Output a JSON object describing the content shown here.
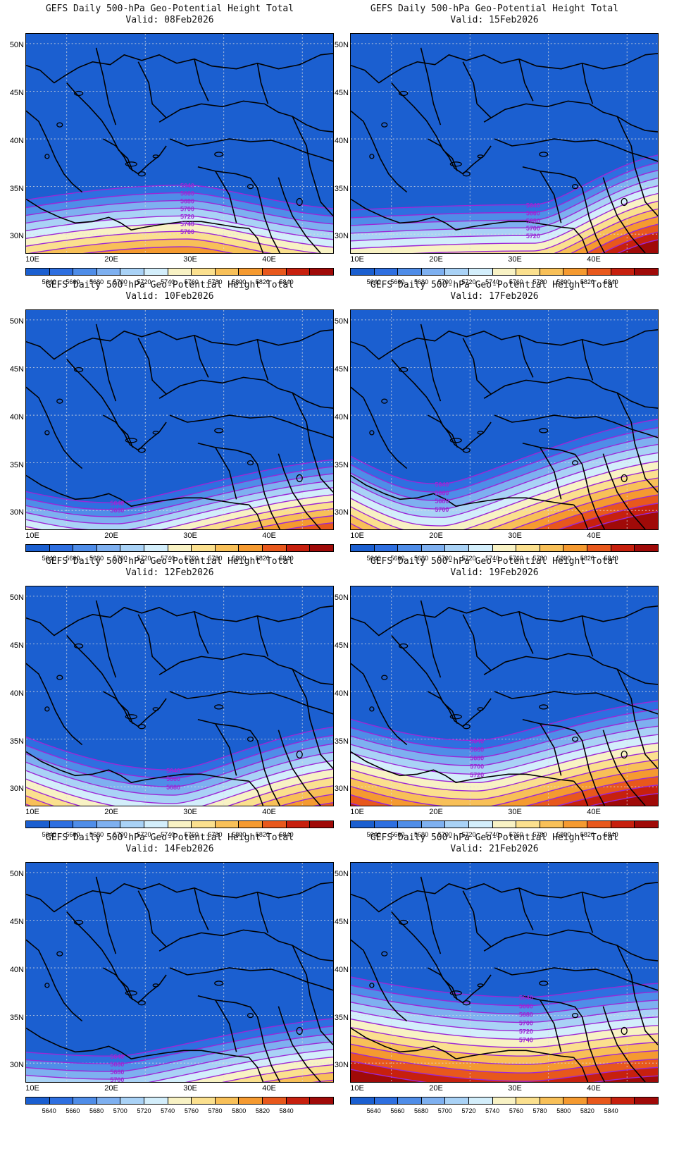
{
  "panel_title": "GEFS Daily 500-hPa Geo-Potential Height Total",
  "valid_prefix": "Valid:",
  "lat_labels": [
    "50N",
    "45N",
    "40N",
    "35N",
    "30N"
  ],
  "lon_labels": [
    "10E",
    "20E",
    "30E",
    "40E"
  ],
  "colorbar": {
    "levels": [
      "5640",
      "5660",
      "5680",
      "5700",
      "5720",
      "5740",
      "5760",
      "5780",
      "5800",
      "5820",
      "5840"
    ],
    "colors": [
      "#1b5fd0",
      "#2e6fe0",
      "#4f8de8",
      "#7eb0f0",
      "#a9d2f6",
      "#d3eefb",
      "#f8f2c4",
      "#fbe08e",
      "#f8c058",
      "#f59a30",
      "#e8581c",
      "#c7200e",
      "#a00a08"
    ]
  },
  "contour_color": "#9c27d6",
  "panels": [
    {
      "valid": "08Feb2026",
      "labels": [
        "5640",
        "5660",
        "5680",
        "5700",
        "5720",
        "5740",
        "5760"
      ]
    },
    {
      "valid": "15Feb2026",
      "labels": [
        "5640",
        "5660",
        "5680",
        "5700",
        "5720"
      ]
    },
    {
      "valid": "10Feb2026",
      "labels": [
        "5640",
        "5660"
      ]
    },
    {
      "valid": "17Feb2026",
      "labels": [
        "5640",
        "5660",
        "5680",
        "5700"
      ]
    },
    {
      "valid": "12Feb2026",
      "labels": [
        "5640",
        "5660",
        "5680"
      ]
    },
    {
      "valid": "19Feb2026",
      "labels": [
        "5640",
        "5660",
        "5680",
        "5700",
        "5720"
      ]
    },
    {
      "valid": "14Feb2026",
      "labels": [
        "5640",
        "5660",
        "5680",
        "5700",
        "5720"
      ]
    },
    {
      "valid": "21Feb2026",
      "labels": [
        "5640",
        "5660",
        "5680",
        "5700",
        "5720",
        "5740"
      ]
    }
  ]
}
